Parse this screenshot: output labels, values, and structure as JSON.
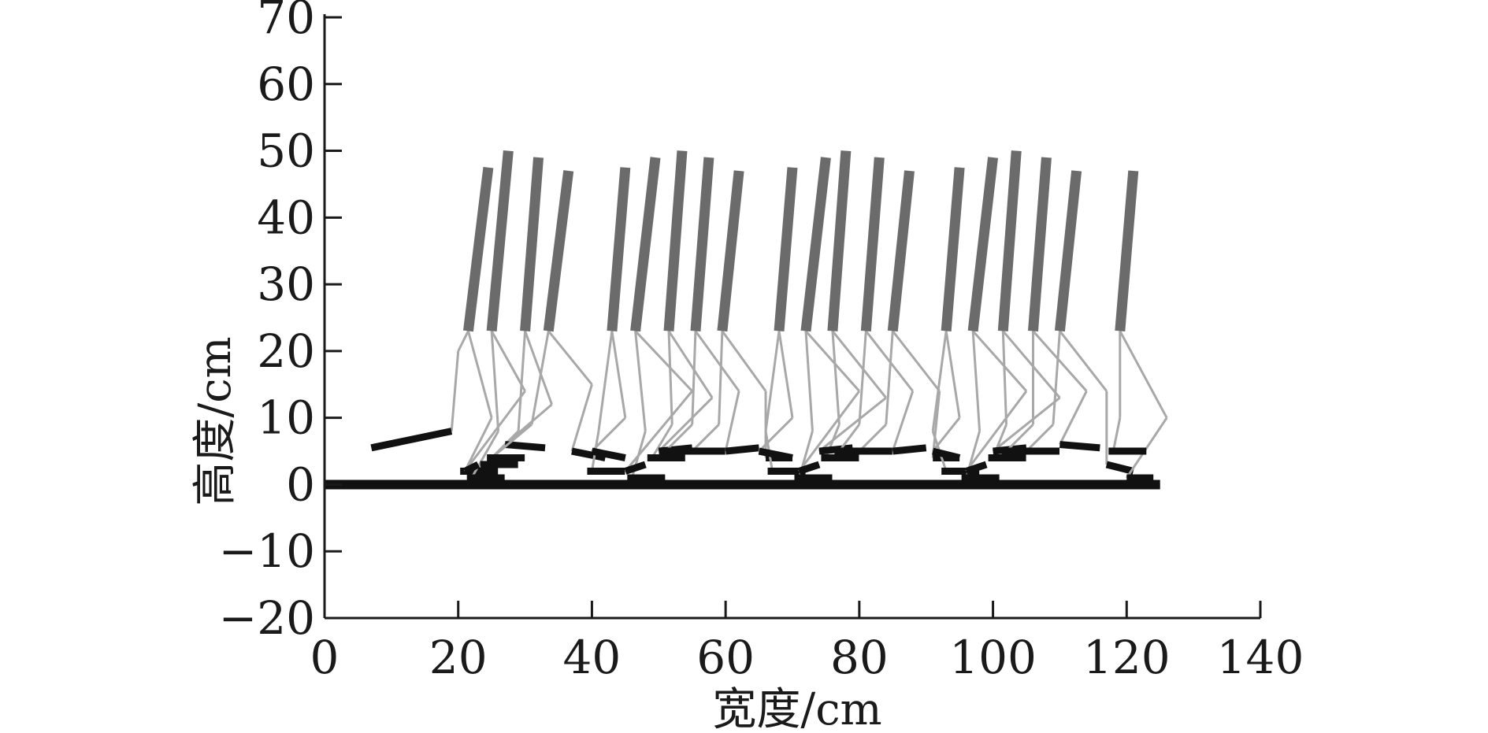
{
  "chart_data": {
    "type": "line",
    "title": "",
    "xlabel": "宽度/cm",
    "ylabel": "高度/cm",
    "xlim": [
      0,
      140
    ],
    "ylim": [
      -20,
      70
    ],
    "x_ticks": [
      0,
      20,
      40,
      60,
      80,
      100,
      120,
      140
    ],
    "y_ticks": [
      -20,
      -10,
      0,
      10,
      20,
      30,
      40,
      50,
      60,
      70
    ],
    "x_tick_labels": [
      "0",
      "20",
      "40",
      "60",
      "80",
      "100",
      "120",
      "140"
    ],
    "y_tick_labels": [
      "−20",
      "−10",
      "0",
      "10",
      "20",
      "30",
      "40",
      "50",
      "60",
      "70"
    ],
    "grid": false,
    "legend": "none",
    "colors": {
      "torso": "#6b6b6b",
      "leg": "#a8a8a8",
      "foot": "#111111",
      "axis": "#1a1a1a"
    },
    "ground": {
      "x": [
        0,
        125
      ],
      "y": 0
    },
    "poses": [
      {
        "hip": [
          21.5,
          23
        ],
        "head": [
          24.5,
          47.5
        ],
        "knee": [
          20,
          20
        ],
        "ankle": [
          19,
          8
        ],
        "toe": [
          7,
          5.5
        ],
        "stance_knee": [
          25,
          10
        ],
        "stance_ankle": [
          21,
          2
        ]
      },
      {
        "hip": [
          25,
          23
        ],
        "head": [
          27.5,
          50
        ],
        "knee": [
          30,
          14
        ],
        "ankle": [
          21,
          2
        ],
        "toe": [
          23,
          3
        ],
        "stance_knee": [
          26,
          8
        ],
        "stance_ankle": [
          22,
          1
        ]
      },
      {
        "hip": [
          30,
          23
        ],
        "head": [
          32,
          49
        ],
        "knee": [
          34,
          12
        ],
        "ankle": [
          27,
          6
        ],
        "toe": [
          33,
          5.5
        ],
        "stance_knee": [
          29,
          8
        ],
        "stance_ankle": [
          24,
          3
        ]
      },
      {
        "hip": [
          33.5,
          23
        ],
        "head": [
          36.5,
          47
        ],
        "knee": [
          40,
          15
        ],
        "ankle": [
          37,
          5
        ],
        "toe": [
          42,
          4
        ],
        "stance_knee": [
          31,
          9
        ],
        "stance_ankle": [
          25,
          4
        ]
      },
      {
        "hip": [
          43,
          23
        ],
        "head": [
          45,
          47.5
        ],
        "knee": [
          45,
          10
        ],
        "ankle": [
          40,
          5
        ],
        "toe": [
          45,
          4
        ],
        "stance_knee": [
          41,
          8
        ],
        "stance_ankle": [
          40,
          2
        ]
      },
      {
        "hip": [
          46.5,
          23
        ],
        "head": [
          49.5,
          49
        ],
        "knee": [
          55,
          14
        ],
        "ankle": [
          45,
          2
        ],
        "toe": [
          48,
          3
        ],
        "stance_knee": [
          48,
          8
        ],
        "stance_ankle": [
          46,
          1
        ]
      },
      {
        "hip": [
          51.5,
          23
        ],
        "head": [
          53.5,
          50
        ],
        "knee": [
          58,
          13
        ],
        "ankle": [
          50,
          5
        ],
        "toe": [
          55,
          5.5
        ],
        "stance_knee": [
          52,
          9
        ],
        "stance_ankle": [
          49,
          4
        ]
      },
      {
        "hip": [
          55.5,
          23
        ],
        "head": [
          57.5,
          49
        ],
        "knee": [
          62,
          14
        ],
        "ankle": [
          60,
          5
        ],
        "toe": [
          65,
          5.5
        ],
        "stance_knee": [
          55,
          9
        ],
        "stance_ankle": [
          51,
          5
        ]
      },
      {
        "hip": [
          59.5,
          23
        ],
        "head": [
          62,
          47
        ],
        "knee": [
          66,
          14
        ],
        "ankle": [
          66,
          4
        ],
        "toe": [
          70,
          4
        ],
        "stance_knee": [
          59,
          9
        ],
        "stance_ankle": [
          55,
          5
        ]
      },
      {
        "hip": [
          68,
          23
        ],
        "head": [
          70,
          47.5
        ],
        "knee": [
          70,
          10
        ],
        "ankle": [
          65,
          5
        ],
        "toe": [
          70,
          4
        ],
        "stance_knee": [
          66,
          8
        ],
        "stance_ankle": [
          67,
          2
        ]
      },
      {
        "hip": [
          72,
          23
        ],
        "head": [
          75,
          49
        ],
        "knee": [
          80,
          14
        ],
        "ankle": [
          71,
          2
        ],
        "toe": [
          74,
          3
        ],
        "stance_knee": [
          73,
          8
        ],
        "stance_ankle": [
          71,
          1
        ]
      },
      {
        "hip": [
          76,
          23
        ],
        "head": [
          78,
          50
        ],
        "knee": [
          84,
          13
        ],
        "ankle": [
          74,
          5
        ],
        "toe": [
          79,
          5.5
        ],
        "stance_knee": [
          77,
          9
        ],
        "stance_ankle": [
          75,
          4
        ]
      },
      {
        "hip": [
          81,
          23
        ],
        "head": [
          83,
          49
        ],
        "knee": [
          88,
          14
        ],
        "ankle": [
          85,
          5
        ],
        "toe": [
          90,
          5.5
        ],
        "stance_knee": [
          80,
          9
        ],
        "stance_ankle": [
          77,
          5
        ]
      },
      {
        "hip": [
          85,
          23
        ],
        "head": [
          87.5,
          47
        ],
        "knee": [
          92,
          14
        ],
        "ankle": [
          91,
          4
        ],
        "toe": [
          95,
          4
        ],
        "stance_knee": [
          84,
          9
        ],
        "stance_ankle": [
          80,
          5
        ]
      },
      {
        "hip": [
          93,
          23
        ],
        "head": [
          95,
          47.5
        ],
        "knee": [
          95,
          10
        ],
        "ankle": [
          91,
          5
        ],
        "toe": [
          95,
          4
        ],
        "stance_knee": [
          91,
          8
        ],
        "stance_ankle": [
          93,
          2
        ]
      },
      {
        "hip": [
          97,
          23
        ],
        "head": [
          100,
          49
        ],
        "knee": [
          105,
          14
        ],
        "ankle": [
          96,
          2
        ],
        "toe": [
          99,
          3
        ],
        "stance_knee": [
          98,
          8
        ],
        "stance_ankle": [
          96,
          1
        ]
      },
      {
        "hip": [
          101.5,
          23
        ],
        "head": [
          103.5,
          50
        ],
        "knee": [
          110,
          13
        ],
        "ankle": [
          100,
          5
        ],
        "toe": [
          105,
          5.5
        ],
        "stance_knee": [
          102,
          9
        ],
        "stance_ankle": [
          100,
          4
        ]
      },
      {
        "hip": [
          106,
          23
        ],
        "head": [
          108,
          49
        ],
        "knee": [
          114,
          14
        ],
        "ankle": [
          110,
          6
        ],
        "toe": [
          116,
          5.5
        ],
        "stance_knee": [
          106,
          9
        ],
        "stance_ankle": [
          102,
          5
        ]
      },
      {
        "hip": [
          110,
          23
        ],
        "head": [
          112.5,
          47
        ],
        "knee": [
          117,
          14
        ],
        "ankle": [
          117,
          3
        ],
        "toe": [
          121,
          2
        ],
        "stance_knee": [
          109,
          9
        ],
        "stance_ankle": [
          105,
          5
        ]
      },
      {
        "hip": [
          119,
          23
        ],
        "head": [
          121,
          47
        ],
        "knee": [
          126,
          10
        ],
        "ankle": [
          120,
          1
        ],
        "toe": [
          124,
          1
        ],
        "stance_knee": [
          119,
          10
        ],
        "stance_ankle": [
          118,
          5
        ]
      }
    ]
  }
}
